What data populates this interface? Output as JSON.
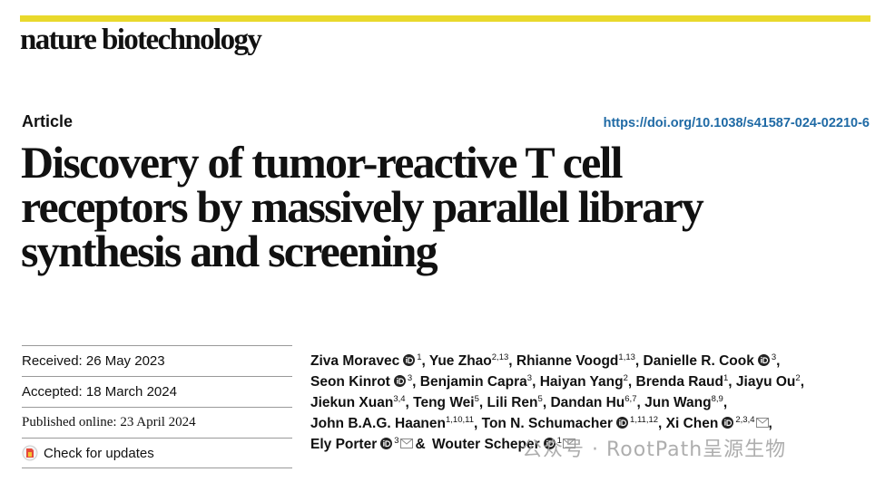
{
  "header": {
    "journal": "nature biotechnology"
  },
  "article": {
    "type": "Article",
    "doi": "https://doi.org/10.1038/s41587-024-02210-6",
    "title_lines": [
      "Discovery of tumor-reactive T cell",
      "receptors by massively parallel library",
      "synthesis and screening"
    ]
  },
  "history": [
    "Received: 26 May 2023",
    "Accepted: 18 March 2024",
    "Published online: 23 April 2024"
  ],
  "check_updates": "Check for updates",
  "author_lines": [
    [
      {
        "name": "Ziva Moravec",
        "orcid": true,
        "sup": "1",
        "sep": ","
      },
      {
        "name": "Yue Zhao",
        "sup": "2,13",
        "sep": ","
      },
      {
        "name": "Rhianne Voogd",
        "sup": "1,13",
        "sep": ","
      },
      {
        "name": "Danielle R. Cook",
        "orcid": true,
        "sup": "3",
        "sep": ","
      }
    ],
    [
      {
        "name": "Seon Kinrot",
        "orcid": true,
        "sup": "3",
        "sep": ","
      },
      {
        "name": "Benjamin Capra",
        "sup": "3",
        "sep": ","
      },
      {
        "name": "Haiyan Yang",
        "sup": "2",
        "sep": ","
      },
      {
        "name": "Brenda Raud",
        "sup": "1",
        "sep": ","
      },
      {
        "name": "Jiayu Ou",
        "sup": "2",
        "sep": ","
      }
    ],
    [
      {
        "name": "Jiekun Xuan",
        "sup": "3,4",
        "sep": ","
      },
      {
        "name": "Teng Wei",
        "sup": "5",
        "sep": ","
      },
      {
        "name": "Lili Ren",
        "sup": "5",
        "sep": ","
      },
      {
        "name": "Dandan Hu",
        "sup": "6,7",
        "sep": ","
      },
      {
        "name": "Jun Wang",
        "sup": "8,9",
        "sep": ","
      }
    ],
    [
      {
        "name": "John B.A.G. Haanen",
        "sup": "1,10,11",
        "sep": ","
      },
      {
        "name": "Ton N. Schumacher",
        "orcid": true,
        "sup": "1,11,12",
        "sep": ","
      },
      {
        "name": "Xi Chen",
        "orcid": true,
        "sup": "2,3,4",
        "email": true,
        "sep": ","
      }
    ],
    [
      {
        "name": "Ely Porter",
        "orcid": true,
        "sup": "3",
        "email": true,
        "sep": "&"
      },
      {
        "name": "Wouter Scheper",
        "orcid": true,
        "sup": "1",
        "email": true
      }
    ]
  ],
  "watermark": "公众号 · RootPath呈源生物"
}
